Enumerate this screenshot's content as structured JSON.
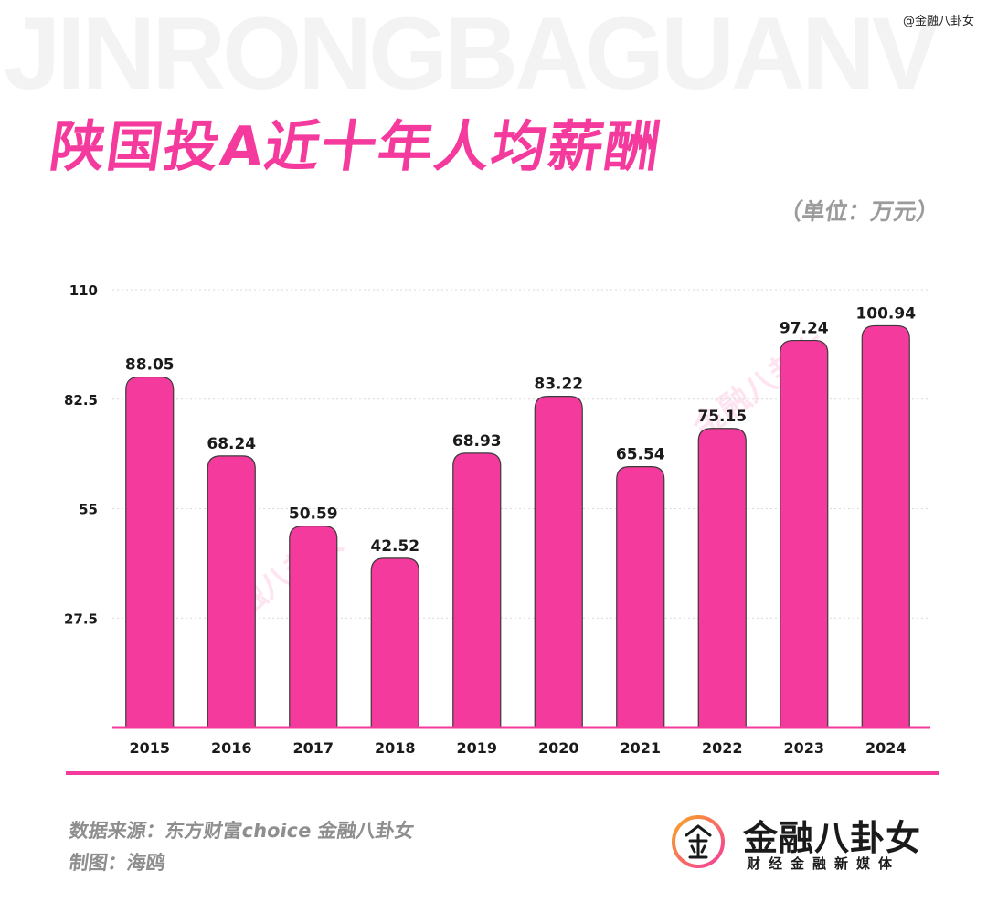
{
  "watermark_bg": "JINRONGBAGUANV",
  "handle": "@金融八卦女",
  "title": "陕国投A近十年人均薪酬",
  "unit": "（单位：万元）",
  "source": "数据来源：东方财富choice  金融八卦女",
  "maker": "制图：海鸥",
  "logo": {
    "name": "金融八卦女",
    "tagline": "财经金融新媒体"
  },
  "watermark_text": "金融八卦女",
  "colors": {
    "accent": "#f53a9e",
    "bar": "#f53a9e",
    "bar_stroke": "#3a3a3a",
    "grid": "#d9d9d9",
    "text": "#1a1a1a",
    "muted": "#8e8e8e"
  },
  "chart_data": {
    "type": "bar",
    "title": "陕国投A近十年人均薪酬",
    "xlabel": "",
    "ylabel": "",
    "unit": "万元",
    "categories": [
      "2015",
      "2016",
      "2017",
      "2018",
      "2019",
      "2020",
      "2021",
      "2022",
      "2023",
      "2024"
    ],
    "values": [
      88.05,
      68.24,
      50.59,
      42.52,
      68.93,
      83.22,
      65.54,
      75.15,
      97.24,
      100.94
    ],
    "value_labels": [
      "88.05",
      "68.24",
      "50.59",
      "42.52",
      "68.93",
      "83.22",
      "65.54",
      "75.15",
      "97.24",
      "100.94"
    ],
    "ylim": [
      0,
      110
    ],
    "yticks": [
      27.5,
      55,
      82.5,
      110
    ],
    "ytick_labels": [
      "27.5",
      "55",
      "82.5",
      "110"
    ],
    "grid": true,
    "legend": "none"
  }
}
